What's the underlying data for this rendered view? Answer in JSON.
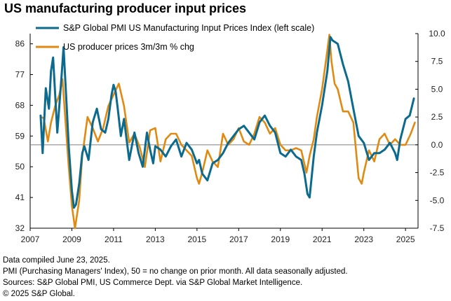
{
  "title": "US manufacturing producer input prices",
  "footnotes": [
    "Data compiled June 23, 2025.",
    "PMI (Purchasing Managers' Index), 50 = no change on prior month. All data seasonally adjusted.",
    "Sources: S&P Global PMI, US Commerce Dept. via S&P Global Market Intelligence.",
    "© 2025 S&P Global."
  ],
  "chart_data": {
    "type": "line",
    "x_tick_labels": [
      "2007",
      "2009",
      "2011",
      "2013",
      "2015",
      "2017",
      "2019",
      "2021",
      "2023",
      "2025"
    ],
    "xlim": [
      2007.0,
      2025.6
    ],
    "left_axis": {
      "ticks": [
        "32",
        "41",
        "50",
        "59",
        "68",
        "77",
        "86"
      ],
      "ylim": [
        32,
        89
      ]
    },
    "right_axis": {
      "ticks": [
        "-7.5",
        "-5.0",
        "-2.5",
        "0.0",
        "2.5",
        "5.0",
        "7.5",
        "10.0"
      ],
      "ylim": [
        -7.5,
        10.0
      ]
    },
    "grid": false,
    "legend_position": "top",
    "series": [
      {
        "name": "S&P Global PMI US Manufacturing Input Prices Index (left scale)",
        "axis": "left",
        "color": "#0b6a8e",
        "x": [
          2007.5,
          2007.6,
          2007.75,
          2007.9,
          2008.0,
          2008.1,
          2008.3,
          2008.5,
          2008.6,
          2008.75,
          2008.85,
          2009.0,
          2009.1,
          2009.2,
          2009.35,
          2009.5,
          2009.6,
          2009.8,
          2010.0,
          2010.2,
          2010.4,
          2010.6,
          2010.75,
          2010.9,
          2011.0,
          2011.1,
          2011.2,
          2011.35,
          2011.5,
          2011.75,
          2012.0,
          2012.2,
          2012.4,
          2012.6,
          2012.75,
          2012.9,
          2013.0,
          2013.25,
          2013.5,
          2013.75,
          2014.0,
          2014.25,
          2014.5,
          2014.75,
          2015.0,
          2015.1,
          2015.25,
          2015.5,
          2015.75,
          2016.0,
          2016.25,
          2016.5,
          2016.75,
          2017.0,
          2017.25,
          2017.5,
          2017.75,
          2018.0,
          2018.25,
          2018.5,
          2018.75,
          2019.0,
          2019.25,
          2019.5,
          2019.75,
          2020.0,
          2020.15,
          2020.3,
          2020.4,
          2020.6,
          2020.75,
          2021.0,
          2021.25,
          2021.4,
          2021.5,
          2021.75,
          2022.0,
          2022.25,
          2022.5,
          2022.75,
          2023.0,
          2023.25,
          2023.5,
          2023.75,
          2024.0,
          2024.25,
          2024.5,
          2024.6,
          2024.75,
          2025.0,
          2025.2,
          2025.4
        ],
        "values": [
          65,
          54,
          73,
          67,
          78,
          82,
          60,
          76,
          85,
          68,
          56,
          43,
          38,
          39,
          45,
          54,
          56,
          52,
          63,
          67,
          61,
          60,
          64,
          71,
          74,
          72,
          67,
          59,
          64,
          52,
          60,
          54,
          50,
          60,
          55,
          51,
          56,
          55,
          53,
          56,
          58,
          53,
          57,
          55,
          51,
          52,
          48,
          46,
          51,
          52,
          54,
          57,
          59,
          61,
          62,
          60,
          58,
          63,
          65,
          62,
          60,
          54,
          53,
          55,
          53,
          52,
          48,
          42,
          41,
          53,
          60,
          68,
          78,
          88,
          87,
          86,
          80,
          75,
          67,
          59,
          57,
          52,
          54,
          54,
          55,
          57,
          54,
          52,
          58,
          64,
          65,
          70
        ]
      },
      {
        "name": "US producer prices  3m/3m % chg",
        "axis": "right",
        "color": "#e08a12",
        "x": [
          2007.5,
          2007.65,
          2007.85,
          2008.0,
          2008.2,
          2008.4,
          2008.55,
          2008.7,
          2008.85,
          2009.0,
          2009.15,
          2009.35,
          2009.5,
          2009.75,
          2010.0,
          2010.25,
          2010.5,
          2010.75,
          2011.0,
          2011.25,
          2011.5,
          2011.75,
          2012.0,
          2012.25,
          2012.5,
          2012.75,
          2013.0,
          2013.25,
          2013.5,
          2013.75,
          2014.0,
          2014.25,
          2014.5,
          2014.75,
          2015.0,
          2015.1,
          2015.25,
          2015.5,
          2015.75,
          2016.0,
          2016.25,
          2016.5,
          2016.75,
          2017.0,
          2017.25,
          2017.5,
          2017.75,
          2018.0,
          2018.25,
          2018.5,
          2018.75,
          2019.0,
          2019.25,
          2019.5,
          2019.75,
          2020.0,
          2020.25,
          2020.4,
          2020.6,
          2020.75,
          2021.0,
          2021.25,
          2021.35,
          2021.45,
          2021.6,
          2021.75,
          2022.0,
          2022.25,
          2022.5,
          2022.75,
          2022.9,
          2023.0,
          2023.25,
          2023.5,
          2023.75,
          2024.0,
          2024.25,
          2024.5,
          2024.75,
          2025.0,
          2025.25,
          2025.45
        ],
        "values": [
          2.5,
          2.4,
          0.3,
          2.0,
          3.5,
          4.5,
          5.9,
          2.0,
          -2.0,
          -5.5,
          -7.5,
          -5.0,
          -1.0,
          2.5,
          1.5,
          0.3,
          1.5,
          3.5,
          4.5,
          5.5,
          3.5,
          0.2,
          1.0,
          -0.2,
          -2.0,
          1.3,
          1.5,
          -1.5,
          0.5,
          1.0,
          1.0,
          0.0,
          -0.5,
          -1.0,
          -3.0,
          -3.5,
          -2.5,
          -0.5,
          -1.5,
          -2.0,
          1.0,
          0.0,
          0.5,
          1.5,
          0.3,
          0.0,
          1.0,
          2.5,
          2.0,
          1.0,
          1.5,
          0.0,
          -0.5,
          -0.5,
          -0.3,
          -0.5,
          -2.5,
          -1.0,
          0.5,
          2.5,
          5.0,
          8.5,
          9.9,
          7.5,
          5.5,
          5.0,
          3.0,
          3.0,
          2.0,
          -3.0,
          -3.5,
          -2.5,
          -0.5,
          -1.5,
          0.5,
          1.0,
          0.0,
          0.5,
          0.0,
          0.0,
          1.0,
          2.0
        ]
      }
    ]
  }
}
